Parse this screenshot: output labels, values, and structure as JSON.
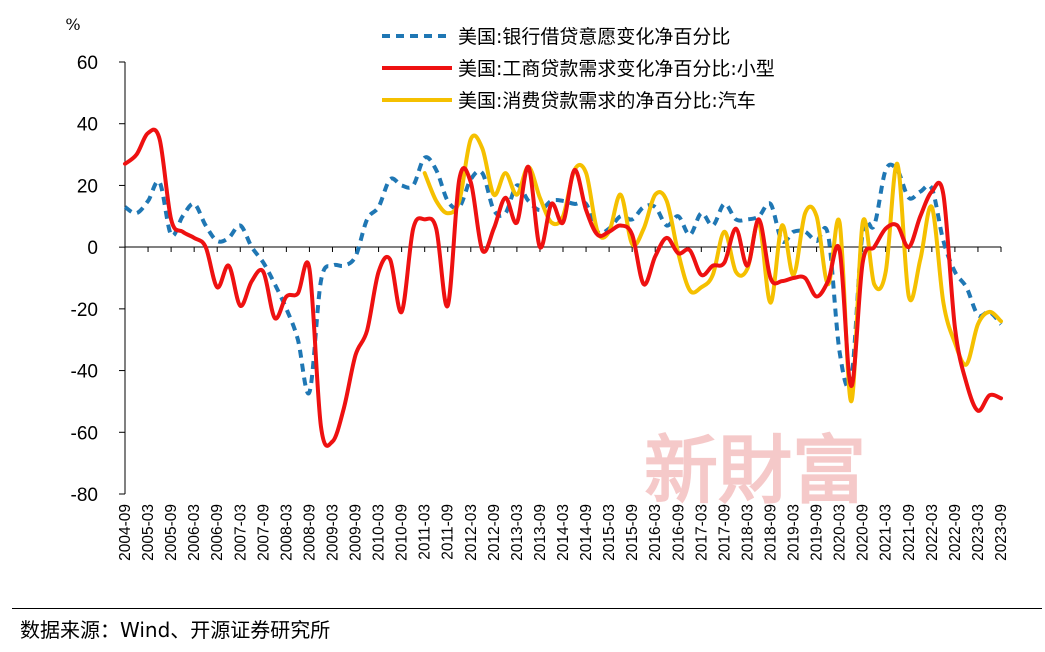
{
  "chart_data": {
    "type": "line",
    "y_unit": "%",
    "ylim": [
      -80,
      60
    ],
    "yticks": [
      60,
      40,
      20,
      0,
      -20,
      -40,
      -60,
      -80
    ],
    "x_start": "2004-09",
    "x_end": "2023-09",
    "xticks": [
      "2004-09",
      "2005-03",
      "2005-09",
      "2006-03",
      "2006-09",
      "2007-03",
      "2007-09",
      "2008-03",
      "2008-09",
      "2009-03",
      "2009-09",
      "2010-03",
      "2010-09",
      "2011-03",
      "2011-09",
      "2012-03",
      "2012-09",
      "2013-03",
      "2013-09",
      "2014-03",
      "2014-09",
      "2015-03",
      "2015-09",
      "2016-03",
      "2016-09",
      "2017-03",
      "2017-09",
      "2018-03",
      "2018-09",
      "2019-03",
      "2019-09",
      "2020-03",
      "2020-09",
      "2021-03",
      "2021-09",
      "2022-03",
      "2022-09",
      "2023-03",
      "2023-09"
    ],
    "grid": false,
    "legend_position": "top-right",
    "series": [
      {
        "name": "美国:银行借贷意愿变化净百分比",
        "color": "#1f77b4",
        "style": "dashed",
        "x": [
          "2004-09",
          "2004-12",
          "2005-03",
          "2005-06",
          "2005-09",
          "2005-12",
          "2006-03",
          "2006-06",
          "2006-09",
          "2006-12",
          "2007-03",
          "2007-06",
          "2007-09",
          "2007-12",
          "2008-03",
          "2008-06",
          "2008-09",
          "2008-12",
          "2009-03",
          "2009-06",
          "2009-09",
          "2009-12",
          "2010-03",
          "2010-06",
          "2010-09",
          "2010-12",
          "2011-03",
          "2011-06",
          "2011-09",
          "2011-12",
          "2012-03",
          "2012-06",
          "2012-09",
          "2012-12",
          "2013-03",
          "2013-06",
          "2013-09",
          "2013-12",
          "2014-03",
          "2014-06",
          "2014-09",
          "2014-12",
          "2015-03",
          "2015-06",
          "2015-09",
          "2015-12",
          "2016-03",
          "2016-06",
          "2016-09",
          "2016-12",
          "2017-03",
          "2017-06",
          "2017-09",
          "2017-12",
          "2018-03",
          "2018-06",
          "2018-09",
          "2018-12",
          "2019-03",
          "2019-06",
          "2019-09",
          "2019-12",
          "2020-03",
          "2020-06",
          "2020-09",
          "2020-12",
          "2021-03",
          "2021-06",
          "2021-09",
          "2021-12",
          "2022-03",
          "2022-06",
          "2022-09",
          "2022-12",
          "2023-03",
          "2023-06",
          "2023-09"
        ],
        "values": [
          13,
          11,
          15,
          21,
          4,
          10,
          14,
          7,
          2,
          3,
          7,
          0,
          -5,
          -12,
          -20,
          -30,
          -47,
          -11,
          -6,
          -6,
          -3,
          9,
          13,
          22,
          20,
          20,
          29,
          25,
          15,
          13,
          22,
          24,
          12,
          11,
          20,
          15,
          12,
          15,
          15,
          14,
          14,
          5,
          6,
          10,
          9,
          13,
          13,
          7,
          10,
          4,
          11,
          7,
          14,
          9,
          9,
          10,
          14,
          2,
          5,
          5,
          2,
          4,
          -34,
          -43,
          5,
          7,
          25,
          25,
          16,
          18,
          19,
          2,
          -8,
          -13,
          -22,
          -21,
          -25
        ]
      },
      {
        "name": "美国:工商贷款需求变化净百分比:小型",
        "color": "#ee1111",
        "style": "solid",
        "x": [
          "2004-09",
          "2004-12",
          "2005-03",
          "2005-06",
          "2005-09",
          "2005-12",
          "2006-03",
          "2006-06",
          "2006-09",
          "2006-12",
          "2007-03",
          "2007-06",
          "2007-09",
          "2007-12",
          "2008-03",
          "2008-06",
          "2008-09",
          "2008-12",
          "2009-03",
          "2009-06",
          "2009-09",
          "2009-12",
          "2010-03",
          "2010-06",
          "2010-09",
          "2010-12",
          "2011-03",
          "2011-06",
          "2011-09",
          "2011-12",
          "2012-03",
          "2012-06",
          "2012-09",
          "2012-12",
          "2013-03",
          "2013-06",
          "2013-09",
          "2013-12",
          "2014-03",
          "2014-06",
          "2014-09",
          "2014-12",
          "2015-03",
          "2015-06",
          "2015-09",
          "2015-12",
          "2016-03",
          "2016-06",
          "2016-09",
          "2016-12",
          "2017-03",
          "2017-06",
          "2017-09",
          "2017-12",
          "2018-03",
          "2018-06",
          "2018-09",
          "2018-12",
          "2019-03",
          "2019-06",
          "2019-09",
          "2019-12",
          "2020-03",
          "2020-06",
          "2020-09",
          "2020-12",
          "2021-03",
          "2021-06",
          "2021-09",
          "2021-12",
          "2022-03",
          "2022-06",
          "2022-09",
          "2022-12",
          "2023-03",
          "2023-06",
          "2023-09"
        ],
        "values": [
          27,
          30,
          37,
          35,
          9,
          5,
          3,
          0,
          -13,
          -6,
          -19,
          -11,
          -8,
          -23,
          -16,
          -15,
          -7,
          -58,
          -63,
          -52,
          -35,
          -27,
          -8,
          -4,
          -21,
          6,
          9,
          6,
          -19,
          22,
          21,
          -1,
          6,
          16,
          8,
          26,
          0,
          14,
          8,
          25,
          12,
          4,
          5,
          7,
          4,
          -12,
          -3,
          3,
          -2,
          -1,
          -9,
          -6,
          -5,
          6,
          -6,
          9,
          -10,
          -11,
          -10,
          -10,
          -16,
          -11,
          -1,
          -45,
          -5,
          0,
          6,
          7,
          0,
          10,
          18,
          17,
          -26,
          -44,
          -53,
          -48,
          -49
        ]
      },
      {
        "name": "美国:消费贷款需求的净百分比:汽车",
        "color": "#f5c000",
        "style": "solid",
        "x": [
          "2011-03",
          "2011-06",
          "2011-09",
          "2011-12",
          "2012-03",
          "2012-06",
          "2012-09",
          "2012-12",
          "2013-03",
          "2013-06",
          "2013-09",
          "2013-12",
          "2014-03",
          "2014-06",
          "2014-09",
          "2014-12",
          "2015-03",
          "2015-06",
          "2015-09",
          "2015-12",
          "2016-03",
          "2016-06",
          "2016-09",
          "2016-12",
          "2017-03",
          "2017-06",
          "2017-09",
          "2017-12",
          "2018-03",
          "2018-06",
          "2018-09",
          "2018-12",
          "2019-03",
          "2019-06",
          "2019-09",
          "2019-12",
          "2020-03",
          "2020-06",
          "2020-09",
          "2020-12",
          "2021-03",
          "2021-06",
          "2021-09",
          "2021-12",
          "2022-03",
          "2022-06",
          "2022-09",
          "2022-12",
          "2023-03",
          "2023-06",
          "2023-09"
        ],
        "values": [
          24,
          15,
          11,
          15,
          35,
          32,
          17,
          24,
          17,
          26,
          16,
          8,
          10,
          25,
          24,
          5,
          5,
          17,
          1,
          6,
          17,
          15,
          -2,
          -14,
          -13,
          -9,
          5,
          -8,
          -7,
          8,
          -18,
          7,
          -9,
          11,
          10,
          -12,
          8,
          -50,
          8,
          -12,
          -8,
          27,
          -16,
          -4,
          13,
          -18,
          -31,
          -38,
          -25,
          -21,
          -24
        ]
      }
    ]
  },
  "watermark": "新財富",
  "source_note": "数据来源：Wind、开源证券研究所"
}
